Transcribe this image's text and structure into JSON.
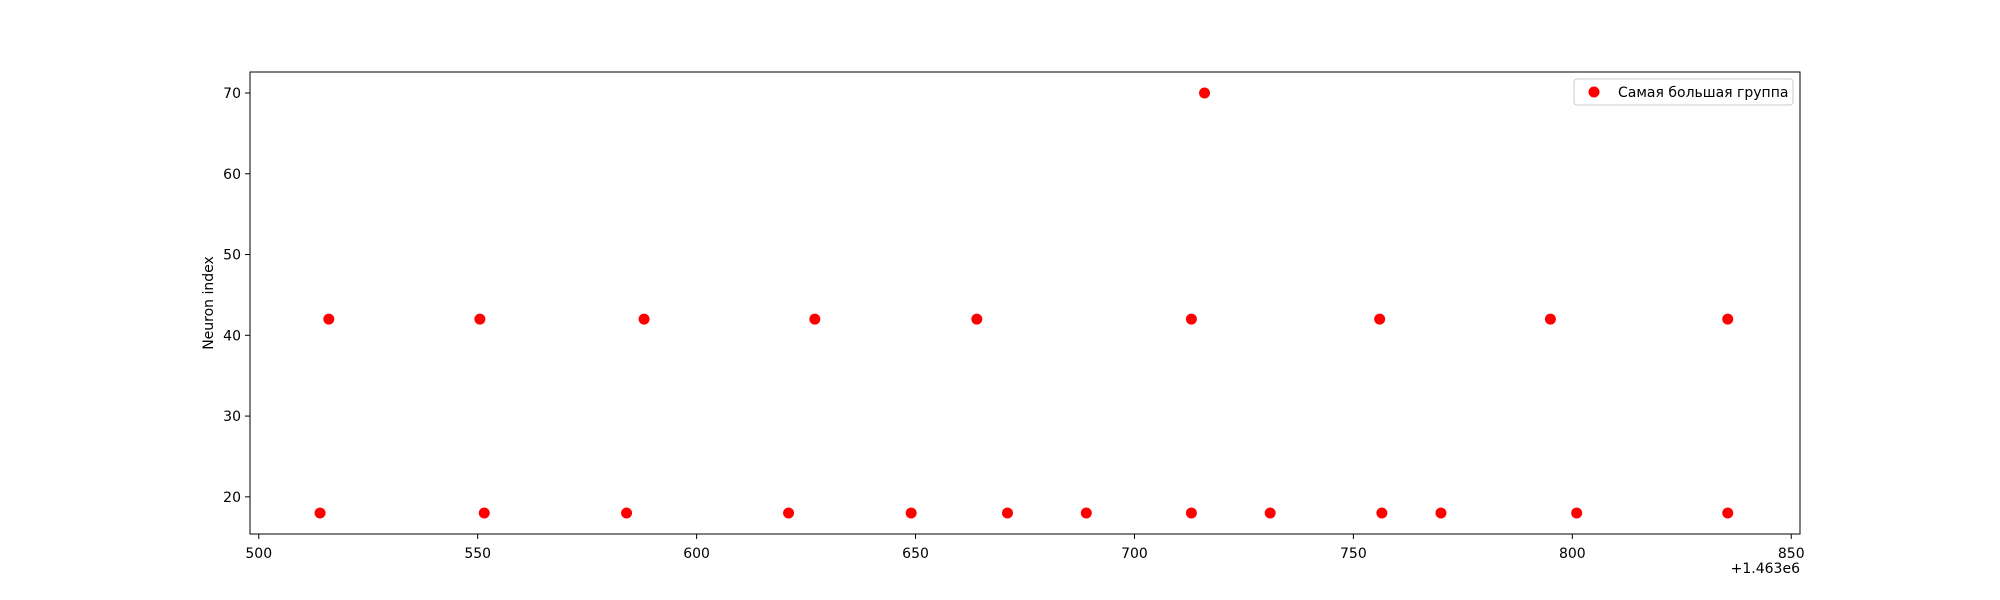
{
  "chart_data": {
    "type": "scatter",
    "title": "",
    "xlabel": "",
    "ylabel": "Neuron index",
    "x_offset_label": "+1.463e6",
    "xlim": [
      498,
      852
    ],
    "ylim": [
      15.4,
      72.6
    ],
    "xticks": [
      500,
      550,
      600,
      650,
      700,
      750,
      800,
      850
    ],
    "yticks": [
      20,
      30,
      40,
      50,
      60,
      70
    ],
    "grid": false,
    "legend": {
      "position": "top-right"
    },
    "series": [
      {
        "name": "Самая большая группа",
        "color": "#ff0000",
        "points": [
          {
            "x": 514,
            "y": 18
          },
          {
            "x": 516,
            "y": 42
          },
          {
            "x": 550.5,
            "y": 42
          },
          {
            "x": 551.5,
            "y": 18
          },
          {
            "x": 584,
            "y": 18
          },
          {
            "x": 588,
            "y": 42
          },
          {
            "x": 621,
            "y": 18
          },
          {
            "x": 627,
            "y": 42
          },
          {
            "x": 649,
            "y": 18
          },
          {
            "x": 664,
            "y": 42
          },
          {
            "x": 671,
            "y": 18
          },
          {
            "x": 689,
            "y": 18
          },
          {
            "x": 713,
            "y": 42
          },
          {
            "x": 713,
            "y": 18
          },
          {
            "x": 716,
            "y": 70
          },
          {
            "x": 731,
            "y": 18
          },
          {
            "x": 756,
            "y": 42
          },
          {
            "x": 756.5,
            "y": 18
          },
          {
            "x": 770,
            "y": 18
          },
          {
            "x": 795,
            "y": 42
          },
          {
            "x": 801,
            "y": 18
          },
          {
            "x": 835.5,
            "y": 42
          },
          {
            "x": 835.5,
            "y": 18
          }
        ]
      }
    ]
  }
}
